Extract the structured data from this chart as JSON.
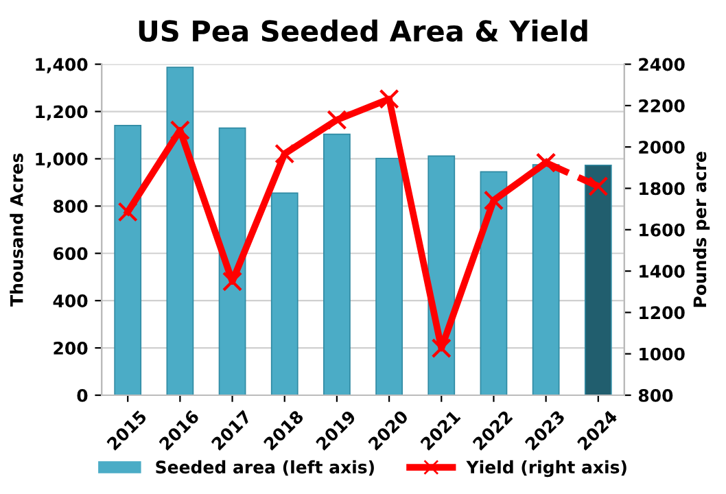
{
  "chart_data": {
    "type": "bar",
    "title": "US Pea Seeded Area & Yield",
    "ylabel": "Thousand Acres",
    "y2label": "Pounds per acre",
    "categories": [
      "2015",
      "2016",
      "2017",
      "2018",
      "2019",
      "2020",
      "2021",
      "2022",
      "2023",
      "2024"
    ],
    "series": [
      {
        "name": "Seeded area (left axis)",
        "color": "#4bacc6",
        "colors": [
          "#4bacc6",
          "#4bacc6",
          "#4bacc6",
          "#4bacc6",
          "#4bacc6",
          "#4bacc6",
          "#4bacc6",
          "#4bacc6",
          "#4bacc6",
          "#215e6e"
        ],
        "values": [
          1141,
          1387,
          1130,
          855,
          1104,
          1002,
          1012,
          945,
          975,
          973
        ]
      },
      {
        "name": "Yield (right axis)",
        "type": "line",
        "axis": "y2",
        "color": "#ff0000",
        "marker": "cross",
        "line_style": "solid",
        "values": [
          1686,
          2081,
          1350,
          1967,
          2131,
          2232,
          1027,
          1742,
          1924,
          null
        ]
      },
      {
        "type": "line",
        "axis": "y2",
        "color": "#ff0000",
        "marker": "cross",
        "line_style": "dashed",
        "values": [
          null,
          null,
          null,
          null,
          null,
          null,
          null,
          null,
          1924,
          1810
        ]
      }
    ],
    "ylim": [
      0,
      1400
    ],
    "yticks": [
      {
        "value": 0,
        "label": "0"
      },
      {
        "value": 200,
        "label": "200"
      },
      {
        "value": 400,
        "label": "400"
      },
      {
        "value": 600,
        "label": "600"
      },
      {
        "value": 800,
        "label": "800"
      },
      {
        "value": 1000,
        "label": "1,000"
      },
      {
        "value": 1200,
        "label": "1,200"
      },
      {
        "value": 1400,
        "label": "1,400"
      }
    ],
    "y2lim": [
      800,
      2400
    ],
    "y2ticks": [
      800,
      1000,
      1200,
      1400,
      1600,
      1800,
      2000,
      2200,
      2400
    ],
    "grid": "y",
    "legend": "bottom"
  }
}
